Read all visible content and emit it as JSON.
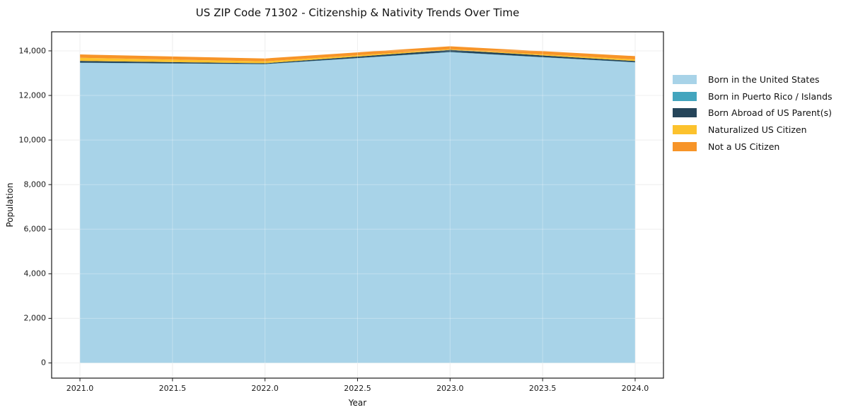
{
  "title": "US ZIP Code 71302 - Citizenship & Nativity Trends Over Time",
  "chart_data": {
    "type": "area",
    "stacked": true,
    "title": "US ZIP Code 71302 - Citizenship & Nativity Trends Over Time",
    "xlabel": "Year",
    "ylabel": "Population",
    "x": [
      2021,
      2022,
      2023,
      2024
    ],
    "series": [
      {
        "name": "Born in the United States",
        "color": "#A8D3E8",
        "values": [
          13460,
          13400,
          13940,
          13480
        ]
      },
      {
        "name": "Born in Puerto Rico / Islands",
        "color": "#43A5BE",
        "values": [
          10,
          10,
          10,
          10
        ]
      },
      {
        "name": "Born Abroad of US Parent(s)",
        "color": "#25455A",
        "values": [
          80,
          35,
          95,
          55
        ]
      },
      {
        "name": "Naturalized US Citizen",
        "color": "#FCC22D",
        "values": [
          140,
          85,
          30,
          70
        ]
      },
      {
        "name": "Not a US Citizen",
        "color": "#F79428",
        "values": [
          150,
          130,
          130,
          150
        ]
      }
    ],
    "x_ticks": [
      {
        "label": "2021.0",
        "v": 2021.0
      },
      {
        "label": "2021.5",
        "v": 2021.5
      },
      {
        "label": "2022.0",
        "v": 2022.0
      },
      {
        "label": "2022.5",
        "v": 2022.5
      },
      {
        "label": "2023.0",
        "v": 2023.0
      },
      {
        "label": "2023.5",
        "v": 2023.5
      },
      {
        "label": "2024.0",
        "v": 2024.0
      }
    ],
    "y_ticks": [
      {
        "label": "0",
        "v": 0
      },
      {
        "label": "2,000",
        "v": 2000
      },
      {
        "label": "4,000",
        "v": 4000
      },
      {
        "label": "6,000",
        "v": 6000
      },
      {
        "label": "8,000",
        "v": 8000
      },
      {
        "label": "10,000",
        "v": 10000
      },
      {
        "label": "12,000",
        "v": 12000
      },
      {
        "label": "14,000",
        "v": 14000
      }
    ],
    "xlim": [
      2020.847,
      2024.153
    ],
    "ylim": [
      -682,
      14855
    ],
    "grid": true,
    "legend_position": "right",
    "colors": {
      "grid": "#e8e8e8",
      "spine": "#1a1a1a",
      "background": "#ffffff"
    }
  }
}
